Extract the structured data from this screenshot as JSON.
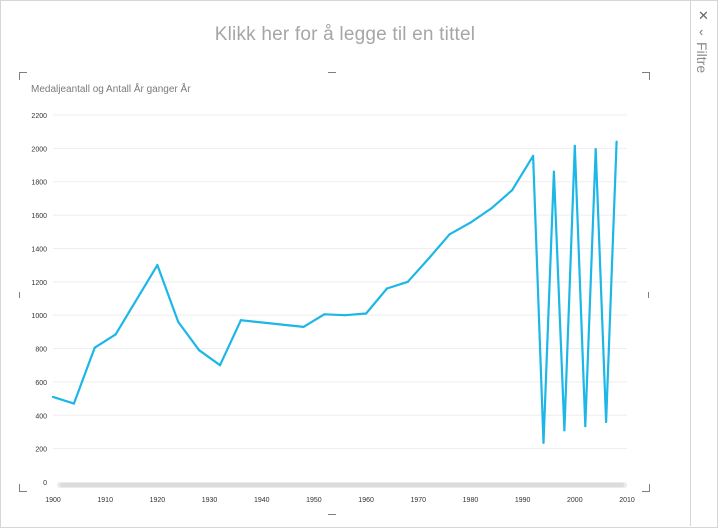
{
  "sheet": {
    "title_placeholder": "Klikk her for å legge til en tittel"
  },
  "filter_pane": {
    "label": "Filtre",
    "close_glyph": "✕",
    "expand_glyph": "‹"
  },
  "chart_data": {
    "type": "line",
    "title": "Medaljeantall og Antall År ganger År",
    "xlim": [
      1900,
      2010
    ],
    "ylim": [
      0,
      2200
    ],
    "x_ticks": [
      1900,
      1910,
      1920,
      1930,
      1940,
      1950,
      1960,
      1970,
      1980,
      1990,
      2000,
      2010
    ],
    "y_ticks": [
      0,
      200,
      400,
      600,
      800,
      1000,
      1200,
      1400,
      1600,
      1800,
      2000,
      2200
    ],
    "grid": true,
    "color": "#1cb7e6",
    "x": [
      1900,
      1904,
      1908,
      1912,
      1920,
      1924,
      1928,
      1932,
      1936,
      1948,
      1952,
      1956,
      1960,
      1964,
      1968,
      1972,
      1976,
      1980,
      1984,
      1988,
      1992,
      1994,
      1996,
      1998,
      2000,
      2002,
      2004,
      2006,
      2008
    ],
    "y": [
      510,
      470,
      805,
      885,
      1300,
      960,
      790,
      700,
      970,
      930,
      1005,
      1000,
      1010,
      1160,
      1200,
      1340,
      1485,
      1555,
      1640,
      1750,
      1955,
      235,
      1860,
      310,
      2015,
      335,
      1995,
      360,
      2040
    ]
  }
}
